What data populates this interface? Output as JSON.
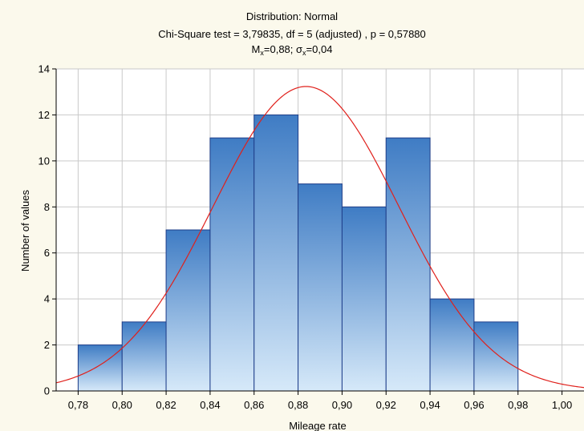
{
  "chart_data": {
    "type": "bar",
    "title": "Distribution: Normal",
    "subtitle": "Chi-Square test = 3,79835, df = 5 (adjusted) , p = 0,57880",
    "stats": {
      "mx_sym": "M",
      "mx_sub": "x",
      "mx_val": "=0,88; ",
      "sx_sym": "σ",
      "sx_sub": "x",
      "sx_val": "=0,04"
    },
    "xlabel": "Mileage rate",
    "ylabel": "Number of values",
    "xlim": [
      0.77,
      1.01
    ],
    "ylim": [
      0,
      14
    ],
    "x_ticks": [
      0.78,
      0.8,
      0.82,
      0.84,
      0.86,
      0.88,
      0.9,
      0.92,
      0.94,
      0.96,
      0.98,
      1.0
    ],
    "x_tick_labels": [
      "0,78",
      "0,80",
      "0,82",
      "0,84",
      "0,86",
      "0,88",
      "0,90",
      "0,92",
      "0,94",
      "0,96",
      "0,98",
      "1,00"
    ],
    "y_ticks": [
      0,
      2,
      4,
      6,
      8,
      10,
      12,
      14
    ],
    "y_tick_labels": [
      "0",
      "2",
      "4",
      "6",
      "8",
      "10",
      "12",
      "14"
    ],
    "bins": [
      {
        "from": 0.78,
        "to": 0.8,
        "count": 2
      },
      {
        "from": 0.8,
        "to": 0.82,
        "count": 3
      },
      {
        "from": 0.82,
        "to": 0.84,
        "count": 7
      },
      {
        "from": 0.84,
        "to": 0.86,
        "count": 11
      },
      {
        "from": 0.86,
        "to": 0.88,
        "count": 12
      },
      {
        "from": 0.88,
        "to": 0.9,
        "count": 9
      },
      {
        "from": 0.9,
        "to": 0.92,
        "count": 8
      },
      {
        "from": 0.92,
        "to": 0.94,
        "count": 11
      },
      {
        "from": 0.94,
        "to": 0.96,
        "count": 4
      },
      {
        "from": 0.96,
        "to": 0.98,
        "count": 3
      }
    ],
    "normal_curve": {
      "mean": 0.8836,
      "sd": 0.0422,
      "n": 70,
      "bin_width": 0.02
    },
    "grid": true,
    "colors": {
      "bar_top": "#3f7cc4",
      "bar_bottom": "#d6e9f9",
      "bar_edge": "#1f3f8a",
      "curve": "#e0201b",
      "grid": "#c9c9c9"
    }
  }
}
